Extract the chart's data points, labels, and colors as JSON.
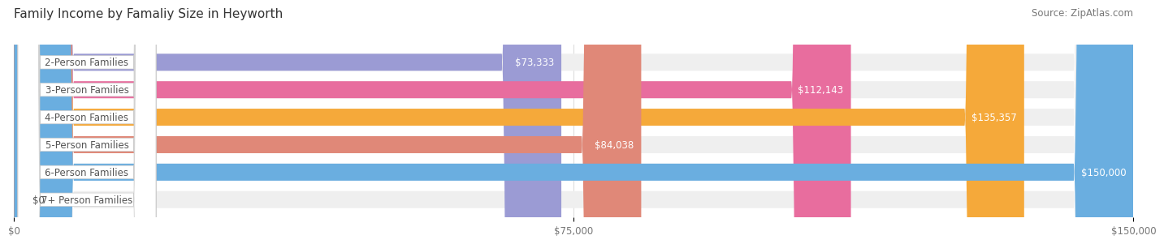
{
  "title": "Family Income by Famaliy Size in Heyworth",
  "source": "Source: ZipAtlas.com",
  "categories": [
    "2-Person Families",
    "3-Person Families",
    "4-Person Families",
    "5-Person Families",
    "6-Person Families",
    "7+ Person Families"
  ],
  "values": [
    73333,
    112143,
    135357,
    84038,
    150000,
    0
  ],
  "bar_colors": [
    "#9b9bd4",
    "#e86d9e",
    "#f5a93a",
    "#e08878",
    "#6aaee0",
    "#c5b8d8"
  ],
  "bar_bg_color": "#efefef",
  "label_bg_color": "#ffffff",
  "label_text_color": "#555555",
  "value_text_color_inside": "#ffffff",
  "value_text_color_outside": "#555555",
  "xlim": [
    0,
    150000
  ],
  "xticks": [
    0,
    75000,
    150000
  ],
  "xtick_labels": [
    "$0",
    "$75,000",
    "$150,000"
  ],
  "background_color": "#ffffff",
  "title_fontsize": 11,
  "source_fontsize": 8.5,
  "bar_label_fontsize": 8.5,
  "value_fontsize": 8.5
}
